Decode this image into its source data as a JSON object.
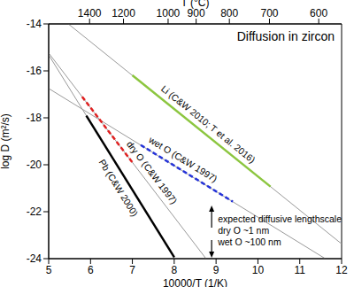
{
  "chart_data": {
    "type": "line",
    "title": "Diffusion in zircon",
    "x_label": "10000/T (1/K)",
    "y_label": "log D (m²/s)",
    "x2_label": "T (°C)",
    "xlim": [
      5,
      12
    ],
    "xticks": [
      5,
      6,
      7,
      8,
      9,
      10,
      11,
      12
    ],
    "ylim": [
      -24,
      -14
    ],
    "yticks": [
      -24,
      -22,
      -20,
      -18,
      -16,
      -14
    ],
    "x2lim": [
      5,
      12
    ],
    "x2ticks": [
      {
        "value": 5.977,
        "label": "1400"
      },
      {
        "value": 6.788,
        "label": "1200"
      },
      {
        "value": 7.854,
        "label": "1000"
      },
      {
        "value": 8.524,
        "label": "900"
      },
      {
        "value": 9.318,
        "label": "800"
      },
      {
        "value": 10.276,
        "label": "700"
      },
      {
        "value": 11.453,
        "label": "600"
      }
    ],
    "grid": false,
    "series": [
      {
        "color": "#999999",
        "line_style": "solid",
        "x": [
          5.47,
          12
        ],
        "values": [
          -14,
          -23.37
        ]
      },
      {
        "name": "Li (C&W 2010; T et al. 2016)",
        "color": "#8cc63f",
        "line_style": "solid",
        "x": [
          7.0,
          10.3
        ],
        "values": [
          -16.19,
          -20.93
        ],
        "label_x": 8.8,
        "label_y": -18.3
      },
      {
        "color": "#999999",
        "line_style": "solid",
        "x": [
          5,
          11.61
        ],
        "values": [
          -16.75,
          -24
        ]
      },
      {
        "name": "wet O (C&W 1997)",
        "color": "#2432d8",
        "line_style": "dashed",
        "x": [
          7.2,
          9.4
        ],
        "values": [
          -19.16,
          -21.57
        ],
        "label_x": 8.2,
        "label_y": -19.8
      },
      {
        "color": "#999999",
        "line_style": "solid",
        "x": [
          5,
          8.76
        ],
        "values": [
          -15.24,
          -24
        ]
      },
      {
        "name": "dry O (C&W 1997)",
        "color": "#e02020",
        "line_style": "dashed",
        "x": [
          5.8,
          7.0
        ],
        "values": [
          -17.1,
          -19.9
        ],
        "label_x": 7.45,
        "label_y": -20.35
      },
      {
        "color": "#999999",
        "line_style": "solid",
        "x": [
          5,
          8.02
        ],
        "values": [
          -15.32,
          -24
        ]
      },
      {
        "name": "Pb (C&W 2000)",
        "color": "#000000",
        "line_style": "solid",
        "x": [
          5.9,
          8.0
        ],
        "values": [
          -17.91,
          -23.94
        ],
        "label_x": 6.65,
        "label_y": -21.0
      }
    ],
    "annotation": {
      "x": 9.0,
      "y": -22.3,
      "lines": [
        "expected diffusive lengthscale",
        "dry O ~1 nm",
        "wet O ~100 nm"
      ]
    }
  }
}
